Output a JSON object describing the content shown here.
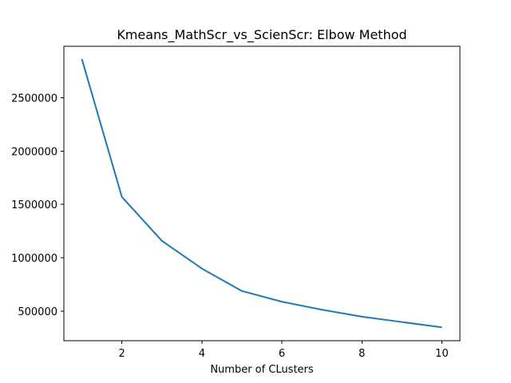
{
  "chart_data": {
    "type": "line",
    "title": "Kmeans_MathScr_vs_ScienScr: Elbow Method",
    "xlabel": "Number of CLusters",
    "ylabel": "",
    "xlim": [
      0.55,
      10.45
    ],
    "ylim": [
      225000,
      2980000
    ],
    "xticks": [
      2,
      4,
      6,
      8,
      10
    ],
    "yticks": [
      500000,
      1000000,
      1500000,
      2000000,
      2500000
    ],
    "xtick_labels": [
      "2",
      "4",
      "6",
      "8",
      "10"
    ],
    "ytick_labels": [
      "500000",
      "1000000",
      "1500000",
      "2000000",
      "2500000"
    ],
    "grid": false,
    "legend": "none",
    "series": [
      {
        "color": "#1f77b4",
        "x": [
          1,
          2,
          3,
          4,
          5,
          6,
          7,
          8,
          9,
          10
        ],
        "values": [
          2860000,
          1570000,
          1160000,
          900000,
          690000,
          590000,
          515000,
          450000,
          400000,
          350000
        ]
      }
    ]
  }
}
